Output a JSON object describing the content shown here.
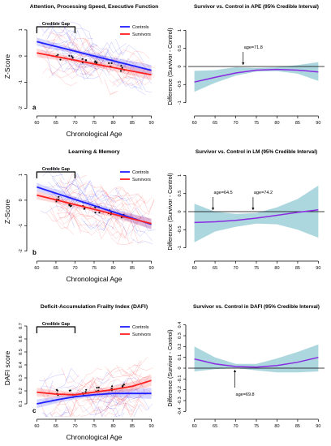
{
  "colors": {
    "controls": "#1f1fff",
    "survivors": "#ff1f1f",
    "diff_line": "#8a2be2",
    "band": "#9fd0d8",
    "gap": "#000000"
  },
  "chart_data": [
    {
      "type": "line",
      "panel": "a",
      "title": "Attention, Processing Speed, Executive Function",
      "xlabel": "Chronological Age",
      "ylabel": "Z-Score",
      "xlim": [
        58,
        92
      ],
      "ylim": [
        -2.2,
        1.4
      ],
      "xticks": [
        60,
        65,
        70,
        75,
        80,
        85,
        90
      ],
      "yticks": [
        -2,
        -1,
        0,
        1
      ],
      "legend": {
        "position": "top-right",
        "entries": [
          "Controls",
          "Survivors"
        ]
      },
      "annotation": {
        "label": "Credible Gap",
        "x_range": [
          60,
          70
        ]
      },
      "series": [
        {
          "name": "Controls",
          "x": [
            60,
            90
          ],
          "y": [
            0.55,
            -0.55
          ]
        },
        {
          "name": "Survivors",
          "x": [
            60,
            90
          ],
          "y": [
            0.12,
            -0.72
          ]
        }
      ]
    },
    {
      "type": "area",
      "panel": "a-diff",
      "title": "Survivor vs. Control in APE (95% Credible Interval)",
      "xlabel": "",
      "ylabel": "Difference (Survivor - Control)",
      "xlim": [
        58.5,
        91.5
      ],
      "ylim": [
        -1.3,
        1.3
      ],
      "xticks": [
        60,
        65,
        70,
        75,
        80,
        85,
        90
      ],
      "yticks": [
        -1,
        -0.5,
        0,
        0.5,
        1
      ],
      "annotations": [
        {
          "label": "age=71.8",
          "x": 71.8
        }
      ],
      "series": [
        {
          "x": [
            60,
            65,
            70,
            75,
            80,
            85,
            90
          ],
          "y": [
            -0.43,
            -0.3,
            -0.18,
            -0.1,
            -0.08,
            -0.1,
            -0.15
          ],
          "lower": [
            -0.7,
            -0.45,
            -0.25,
            -0.14,
            -0.13,
            -0.2,
            -0.4
          ],
          "upper": [
            -0.12,
            -0.1,
            -0.02,
            -0.04,
            -0.02,
            0.04,
            0.12
          ]
        }
      ]
    },
    {
      "type": "line",
      "panel": "b",
      "title": "Learning & Memory",
      "xlabel": "Chronological Age",
      "ylabel": "Z-Score",
      "xlim": [
        58,
        92
      ],
      "ylim": [
        -2.3,
        1.4
      ],
      "xticks": [
        60,
        65,
        70,
        75,
        80,
        85,
        90
      ],
      "yticks": [
        -2,
        -1,
        0,
        1
      ],
      "legend": {
        "position": "top-right",
        "entries": [
          "Controls",
          "Survivors"
        ]
      },
      "annotation": {
        "label": "Credible Gap",
        "x_range": [
          60,
          70
        ]
      },
      "series": [
        {
          "name": "Controls",
          "x": [
            60,
            90
          ],
          "y": [
            0.52,
            -0.95
          ]
        },
        {
          "name": "Survivors",
          "x": [
            60,
            90
          ],
          "y": [
            0.2,
            -0.92
          ]
        }
      ]
    },
    {
      "type": "area",
      "panel": "b-diff",
      "title": "Survivor vs. Control in LM (95% Credible Interval)",
      "xlabel": "",
      "ylabel": "Difference (Survivor - Control)",
      "xlim": [
        58.5,
        91.5
      ],
      "ylim": [
        -1.3,
        1.3
      ],
      "xticks": [
        60,
        65,
        70,
        75,
        80,
        85,
        90
      ],
      "yticks": [
        -1,
        -0.5,
        0,
        0.5,
        1
      ],
      "annotations": [
        {
          "label": "age=64.5",
          "x": 64.5
        },
        {
          "label": "age=74.2",
          "x": 74.2
        }
      ],
      "series": [
        {
          "x": [
            60,
            65,
            70,
            75,
            80,
            85,
            90
          ],
          "y": [
            -0.3,
            -0.28,
            -0.24,
            -0.18,
            -0.1,
            -0.02,
            0.05
          ],
          "lower": [
            -0.85,
            -0.55,
            -0.42,
            -0.33,
            -0.35,
            -0.5,
            -0.72
          ],
          "upper": [
            0.22,
            0.0,
            -0.06,
            -0.04,
            0.12,
            0.35,
            0.72
          ]
        }
      ]
    },
    {
      "type": "line",
      "panel": "c",
      "title": "Deficit-Accumulation Frailty Index (DAFI)",
      "xlabel": "Chronological Age",
      "ylabel": "DAFI score",
      "xlim": [
        58,
        92
      ],
      "ylim": [
        0,
        0.75
      ],
      "xticks": [
        60,
        65,
        70,
        75,
        80,
        85,
        90
      ],
      "yticks": [
        0.1,
        0.2,
        0.3,
        0.4,
        0.5,
        0.6,
        0.7
      ],
      "legend": {
        "position": "top-right",
        "entries": [
          "Controls",
          "Survivors"
        ]
      },
      "annotation": {
        "label": "Credible Gap",
        "x_range": [
          60,
          70
        ]
      },
      "series": [
        {
          "name": "Controls",
          "x": [
            60,
            65,
            70,
            75,
            80,
            85,
            90
          ],
          "y": [
            0.1,
            0.13,
            0.155,
            0.17,
            0.18,
            0.18,
            0.18
          ]
        },
        {
          "name": "Survivors",
          "x": [
            60,
            65,
            70,
            75,
            80,
            85,
            90
          ],
          "y": [
            0.19,
            0.175,
            0.17,
            0.19,
            0.21,
            0.235,
            0.28
          ]
        }
      ]
    },
    {
      "type": "area",
      "panel": "c-diff",
      "title": "Survivor vs. Control in DAFI (95% Credible Interval)",
      "xlabel": "",
      "ylabel": "Difference (Survivor - Control)",
      "xlim": [
        58.5,
        91.5
      ],
      "ylim": [
        -0.45,
        0.45
      ],
      "xticks": [
        60,
        65,
        70,
        75,
        80,
        85,
        90
      ],
      "yticks": [
        -0.4,
        -0.3,
        -0.2,
        -0.1,
        0.0,
        0.1,
        0.2,
        0.3,
        0.4
      ],
      "annotations": [
        {
          "label": "age=69.8",
          "x": 69.8
        }
      ],
      "series": [
        {
          "x": [
            60,
            65,
            70,
            75,
            80,
            85,
            90
          ],
          "y": [
            0.085,
            0.04,
            0.015,
            0.01,
            0.025,
            0.055,
            0.1
          ],
          "lower": [
            -0.03,
            -0.01,
            0.0,
            -0.02,
            -0.04,
            -0.04,
            -0.03
          ],
          "upper": [
            0.2,
            0.1,
            0.04,
            0.04,
            0.09,
            0.15,
            0.22
          ]
        }
      ]
    }
  ]
}
